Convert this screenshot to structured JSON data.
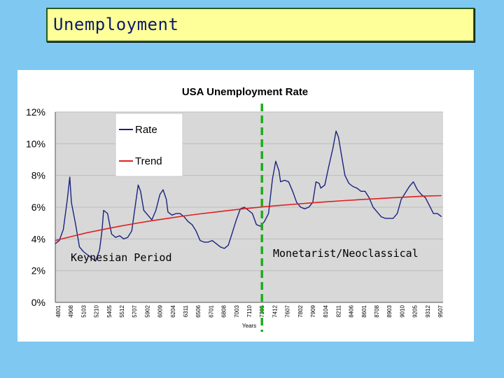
{
  "slide": {
    "title": "Unemployment",
    "background_color": "#7ec8f2",
    "title_box_color": "#ffff99"
  },
  "annotations": {
    "left_period": "Keynesian Period",
    "right_period": "Monetarist/Neoclassical",
    "divider_color": "#22aa22"
  },
  "chart_data": {
    "type": "line",
    "title": "USA Unemployment Rate",
    "xlabel": "Years",
    "ylabel": "",
    "ylim": [
      0,
      12
    ],
    "y_ticks": [
      "0%",
      "2%",
      "4%",
      "6%",
      "8%",
      "10%",
      "12%"
    ],
    "x_tick_labels": [
      "4801",
      "4908",
      "5103",
      "5210",
      "5405",
      "5512",
      "5707",
      "5902",
      "6009",
      "6204",
      "6311",
      "6506",
      "6701",
      "6808",
      "7003",
      "7110",
      "7305",
      "7412",
      "7607",
      "7802",
      "7909",
      "8104",
      "8211",
      "8406",
      "8601",
      "8708",
      "8903",
      "9010",
      "9205",
      "9312",
      "9507"
    ],
    "grid": true,
    "plot_background": "#d8d8d8",
    "legend": {
      "placement": "top-left",
      "entries": [
        "Rate",
        "Trend"
      ]
    },
    "divider_at": "7305",
    "series": [
      {
        "name": "Rate",
        "color": "#1a237e",
        "x": [
          1948.0,
          1948.5,
          1949.0,
          1949.5,
          1949.8,
          1950.0,
          1950.5,
          1951.0,
          1951.5,
          1952.0,
          1952.5,
          1953.0,
          1953.5,
          1953.8,
          1954.0,
          1954.5,
          1954.8,
          1955.0,
          1955.5,
          1956.0,
          1956.5,
          1957.0,
          1957.5,
          1958.0,
          1958.3,
          1958.6,
          1959.0,
          1959.5,
          1960.0,
          1960.5,
          1961.0,
          1961.4,
          1961.8,
          1962.0,
          1962.5,
          1963.0,
          1963.5,
          1964.0,
          1964.5,
          1965.0,
          1965.5,
          1966.0,
          1966.5,
          1967.0,
          1967.5,
          1968.0,
          1968.5,
          1969.0,
          1969.5,
          1970.0,
          1970.5,
          1971.0,
          1971.5,
          1972.0,
          1972.5,
          1973.0,
          1973.5,
          1974.0,
          1974.5,
          1975.0,
          1975.4,
          1975.8,
          1976.0,
          1976.5,
          1977.0,
          1977.5,
          1978.0,
          1978.5,
          1979.0,
          1979.5,
          1980.0,
          1980.4,
          1980.8,
          1981.0,
          1981.5,
          1982.0,
          1982.5,
          1982.9,
          1983.2,
          1983.5,
          1984.0,
          1984.5,
          1985.0,
          1985.5,
          1986.0,
          1986.5,
          1987.0,
          1987.5,
          1988.0,
          1988.5,
          1989.0,
          1989.5,
          1990.0,
          1990.5,
          1991.0,
          1991.5,
          1992.0,
          1992.5,
          1993.0,
          1993.5,
          1994.0,
          1994.5,
          1995.0,
          1995.5,
          1996.0
        ],
        "values": [
          3.7,
          3.9,
          4.6,
          6.5,
          7.9,
          6.3,
          5.0,
          3.5,
          3.2,
          3.0,
          2.8,
          2.6,
          3.3,
          4.5,
          5.8,
          5.6,
          4.8,
          4.3,
          4.1,
          4.2,
          4.0,
          4.1,
          4.5,
          6.3,
          7.4,
          7.0,
          5.8,
          5.5,
          5.2,
          5.8,
          6.8,
          7.1,
          6.5,
          5.7,
          5.5,
          5.6,
          5.6,
          5.4,
          5.1,
          4.9,
          4.5,
          3.9,
          3.8,
          3.8,
          3.9,
          3.7,
          3.5,
          3.4,
          3.6,
          4.4,
          5.2,
          5.9,
          6.0,
          5.8,
          5.6,
          4.9,
          4.8,
          5.1,
          5.6,
          7.8,
          8.9,
          8.3,
          7.6,
          7.7,
          7.6,
          7.0,
          6.3,
          6.0,
          5.9,
          6.0,
          6.3,
          7.6,
          7.5,
          7.2,
          7.4,
          8.6,
          9.7,
          10.8,
          10.4,
          9.5,
          8.0,
          7.5,
          7.3,
          7.2,
          7.0,
          7.0,
          6.6,
          6.0,
          5.7,
          5.4,
          5.3,
          5.3,
          5.3,
          5.6,
          6.5,
          6.9,
          7.3,
          7.6,
          7.1,
          6.8,
          6.6,
          6.1,
          5.6,
          5.6,
          5.4
        ]
      },
      {
        "name": "Trend",
        "color": "#e02020",
        "x": [
          1948,
          1950,
          1952,
          1954,
          1956,
          1958,
          1960,
          1962,
          1964,
          1966,
          1968,
          1970,
          1972,
          1974,
          1976,
          1978,
          1980,
          1982,
          1984,
          1986,
          1988,
          1990,
          1992,
          1994,
          1996
        ],
        "values": [
          3.9,
          4.15,
          4.4,
          4.6,
          4.8,
          4.98,
          5.15,
          5.3,
          5.45,
          5.58,
          5.7,
          5.82,
          5.93,
          6.03,
          6.12,
          6.2,
          6.28,
          6.35,
          6.42,
          6.48,
          6.54,
          6.6,
          6.65,
          6.7,
          6.73
        ]
      }
    ]
  }
}
